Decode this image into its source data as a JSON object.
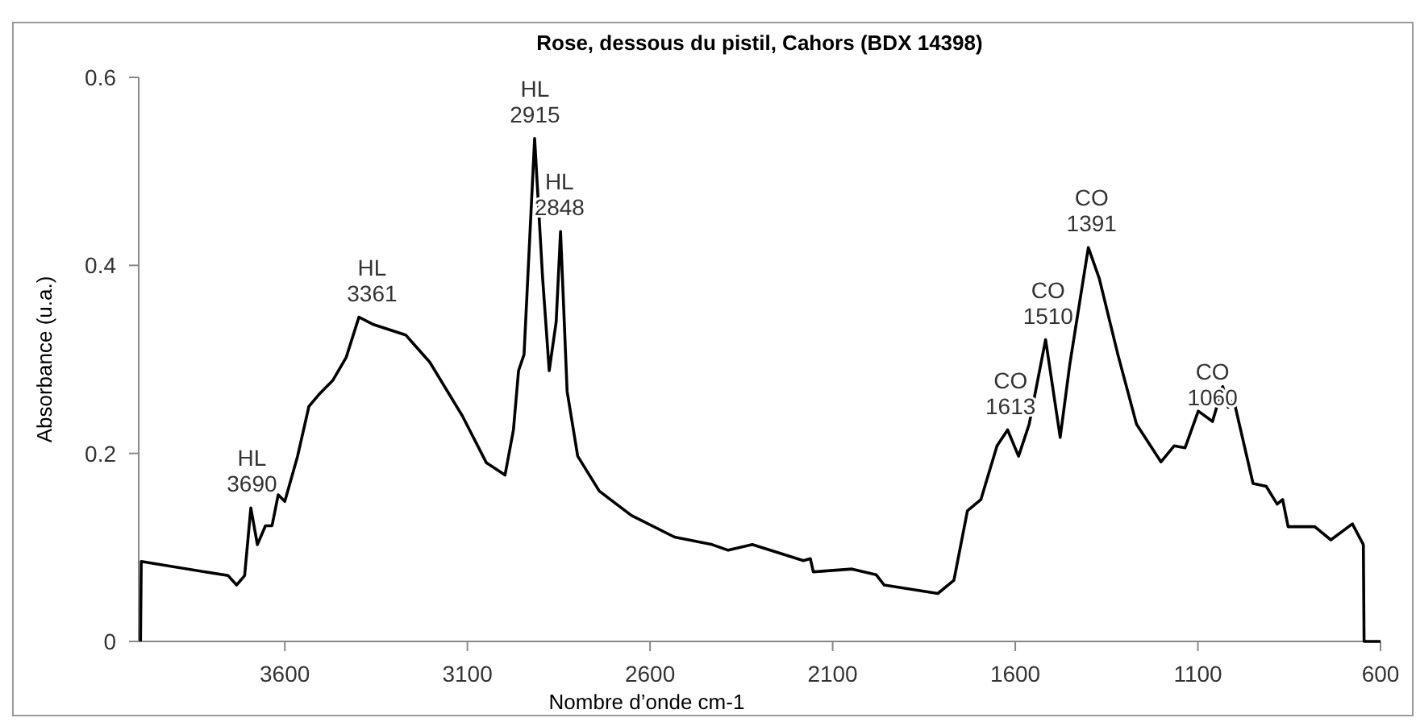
{
  "chart_data": {
    "type": "line",
    "title": "Rose, dessous du pistil, Cahors (BDX 14398)",
    "xlabel": "Nombre d’onde cm-1",
    "ylabel": "Absorbance (u.a.)",
    "xlim": [
      4000,
      600
    ],
    "xticks": [
      3600,
      3100,
      2600,
      2100,
      1600,
      1100,
      600
    ],
    "ylim": [
      0,
      0.6
    ],
    "yticks": [
      0,
      0.2,
      0.4,
      0.6
    ],
    "grid": false,
    "marker": "none",
    "line_style": "solid",
    "series": [
      {
        "color": "#000000",
        "x": [
          3995,
          3993,
          3755,
          3732,
          3710,
          3693,
          3675,
          3653,
          3635,
          3618,
          3600,
          3565,
          3534,
          3508,
          3468,
          3432,
          3397,
          3357,
          3269,
          3203,
          3114,
          3048,
          2997,
          2974,
          2960,
          2945,
          2916,
          2894,
          2876,
          2857,
          2845,
          2827,
          2798,
          2739,
          2651,
          2533,
          2430,
          2386,
          2320,
          2180,
          2161,
          2153,
          2047,
          1981,
          1959,
          1812,
          1768,
          1731,
          1694,
          1650,
          1621,
          1591,
          1562,
          1517,
          1477,
          1451,
          1400,
          1370,
          1319,
          1268,
          1201,
          1165,
          1135,
          1099,
          1060,
          1032,
          1017,
          1002,
          949,
          913,
          883,
          868,
          853,
          780,
          736,
          677,
          647,
          645,
          600
        ],
        "values": [
          0,
          0.085,
          0.07,
          0.06,
          0.07,
          0.142,
          0.103,
          0.123,
          0.123,
          0.156,
          0.149,
          0.197,
          0.25,
          0.262,
          0.278,
          0.302,
          0.345,
          0.337,
          0.326,
          0.297,
          0.24,
          0.19,
          0.177,
          0.225,
          0.288,
          0.305,
          0.535,
          0.386,
          0.288,
          0.34,
          0.436,
          0.266,
          0.197,
          0.16,
          0.134,
          0.111,
          0.103,
          0.097,
          0.103,
          0.086,
          0.088,
          0.074,
          0.077,
          0.071,
          0.06,
          0.051,
          0.065,
          0.139,
          0.151,
          0.208,
          0.225,
          0.197,
          0.231,
          0.321,
          0.217,
          0.294,
          0.419,
          0.386,
          0.305,
          0.231,
          0.191,
          0.208,
          0.206,
          0.245,
          0.234,
          0.271,
          0.249,
          0.257,
          0.168,
          0.165,
          0.146,
          0.151,
          0.122,
          0.122,
          0.108,
          0.125,
          0.103,
          0,
          0
        ]
      }
    ],
    "annotations": [
      {
        "text": "HL\n3690",
        "x": 3690,
        "y": 0.142
      },
      {
        "text": "HL\n3361",
        "x": 3361,
        "y": 0.345
      },
      {
        "text": "HL\n2915",
        "x": 2915,
        "y": 0.535
      },
      {
        "text": "HL\n2848",
        "x": 2848,
        "y": 0.436
      },
      {
        "text": "CO\n1613",
        "x": 1613,
        "y": 0.225
      },
      {
        "text": "CO\n1510",
        "x": 1510,
        "y": 0.321
      },
      {
        "text": "CO\n1391",
        "x": 1391,
        "y": 0.419
      },
      {
        "text": "CO\n1060",
        "x": 1060,
        "y": 0.234
      }
    ]
  }
}
